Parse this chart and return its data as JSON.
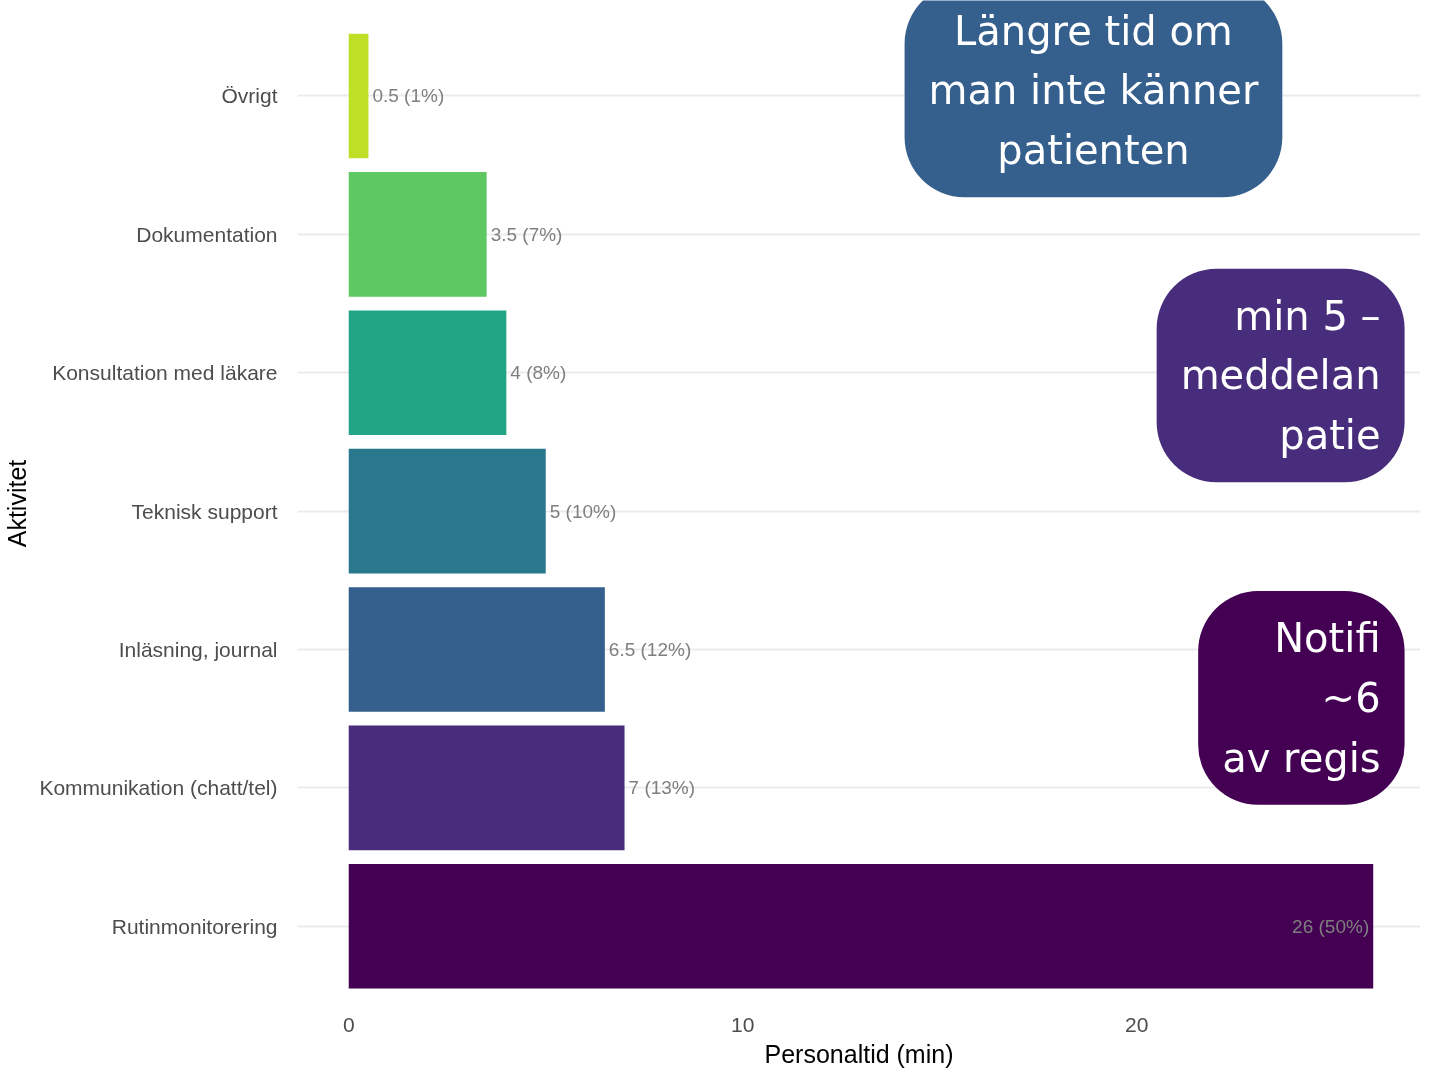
{
  "chart_data": {
    "type": "bar",
    "orientation": "horizontal",
    "categories": [
      "Övrigt",
      "Dokumentation",
      "Konsultation med läkare",
      "Teknisk support",
      "Inläsning, journal",
      "Kommunikation (chatt/tel)",
      "Rutinmonitorering"
    ],
    "values": [
      0.5,
      3.5,
      4,
      5,
      6.5,
      7,
      26
    ],
    "colors": [
      "#bddf26",
      "#5ec962",
      "#21a585",
      "#29788e",
      "#355f8d",
      "#472d7b",
      "#440154"
    ],
    "value_labels": [
      "0.5 (1%)",
      "3.5 (7%)",
      "4 (8%)",
      "5 (10%)",
      "6.5 (12%)",
      "7 (13%)",
      "26 (50%)"
    ],
    "xlim": [
      -1.3,
      27.2
    ],
    "xticks": [
      0,
      10,
      20
    ],
    "xlabel": "Personaltid (min)",
    "ylabel": "Aktivitet",
    "grid": "y",
    "annotations": [
      "Längre tid om\nman inte känner\npatienten",
      "min 5 –\nmeddelan\npatie",
      "Notifi\n~6\nav regis"
    ]
  }
}
